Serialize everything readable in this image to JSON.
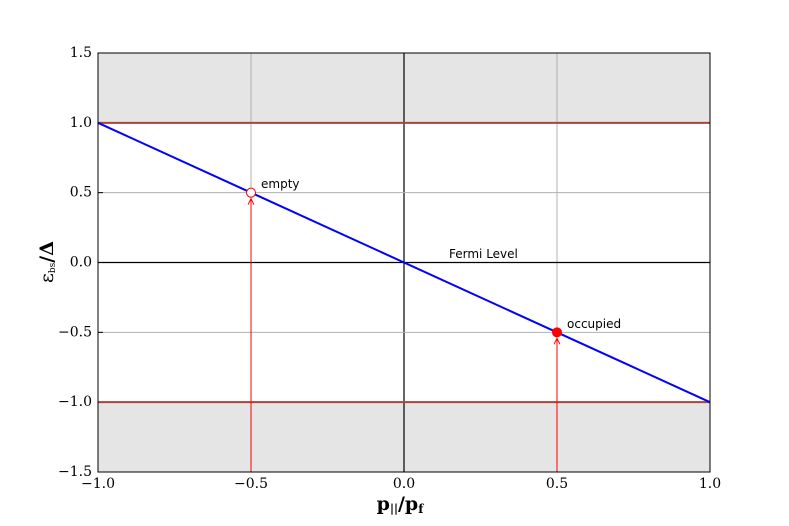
{
  "chart_data": {
    "type": "line",
    "xlabel": [
      "p",
      "||",
      "/p",
      "f"
    ],
    "ylabel": [
      "ε",
      "bs",
      "/Δ"
    ],
    "xlim": [
      -1.0,
      1.0
    ],
    "ylim": [
      -1.5,
      1.5
    ],
    "xticks": [
      {
        "value": -1.0,
        "label": "−1.0"
      },
      {
        "value": -0.5,
        "label": "−0.5"
      },
      {
        "value": 0.0,
        "label": "0.0"
      },
      {
        "value": 0.5,
        "label": "0.5"
      },
      {
        "value": 1.0,
        "label": "1.0"
      }
    ],
    "yticks": [
      {
        "value": -1.5,
        "label": "−1.5"
      },
      {
        "value": -1.0,
        "label": "−1.0"
      },
      {
        "value": -0.5,
        "label": "−0.5"
      },
      {
        "value": 0.0,
        "label": "0.0"
      },
      0.5,
      {
        "value": 1.0,
        "label": "1.0"
      },
      1.5
    ],
    "grid": true,
    "gap_edges": {
      "values": [
        1.0,
        -1.0
      ],
      "color": "#b0403a",
      "shade": "#e5e5e5"
    },
    "series": [
      {
        "color": "#0000ff",
        "x": [
          -1.0,
          1.0
        ],
        "values": [
          1.0,
          -1.0
        ]
      }
    ],
    "points": {
      "color": "#ff0000",
      "x": [
        -0.5,
        0.5
      ],
      "values": [
        0.5,
        -0.5
      ],
      "labels": [
        "empty",
        "occupied"
      ],
      "filled": [
        false,
        true
      ]
    },
    "annotation": {
      "text": "Fermi Level",
      "color": "#228b22"
    }
  }
}
